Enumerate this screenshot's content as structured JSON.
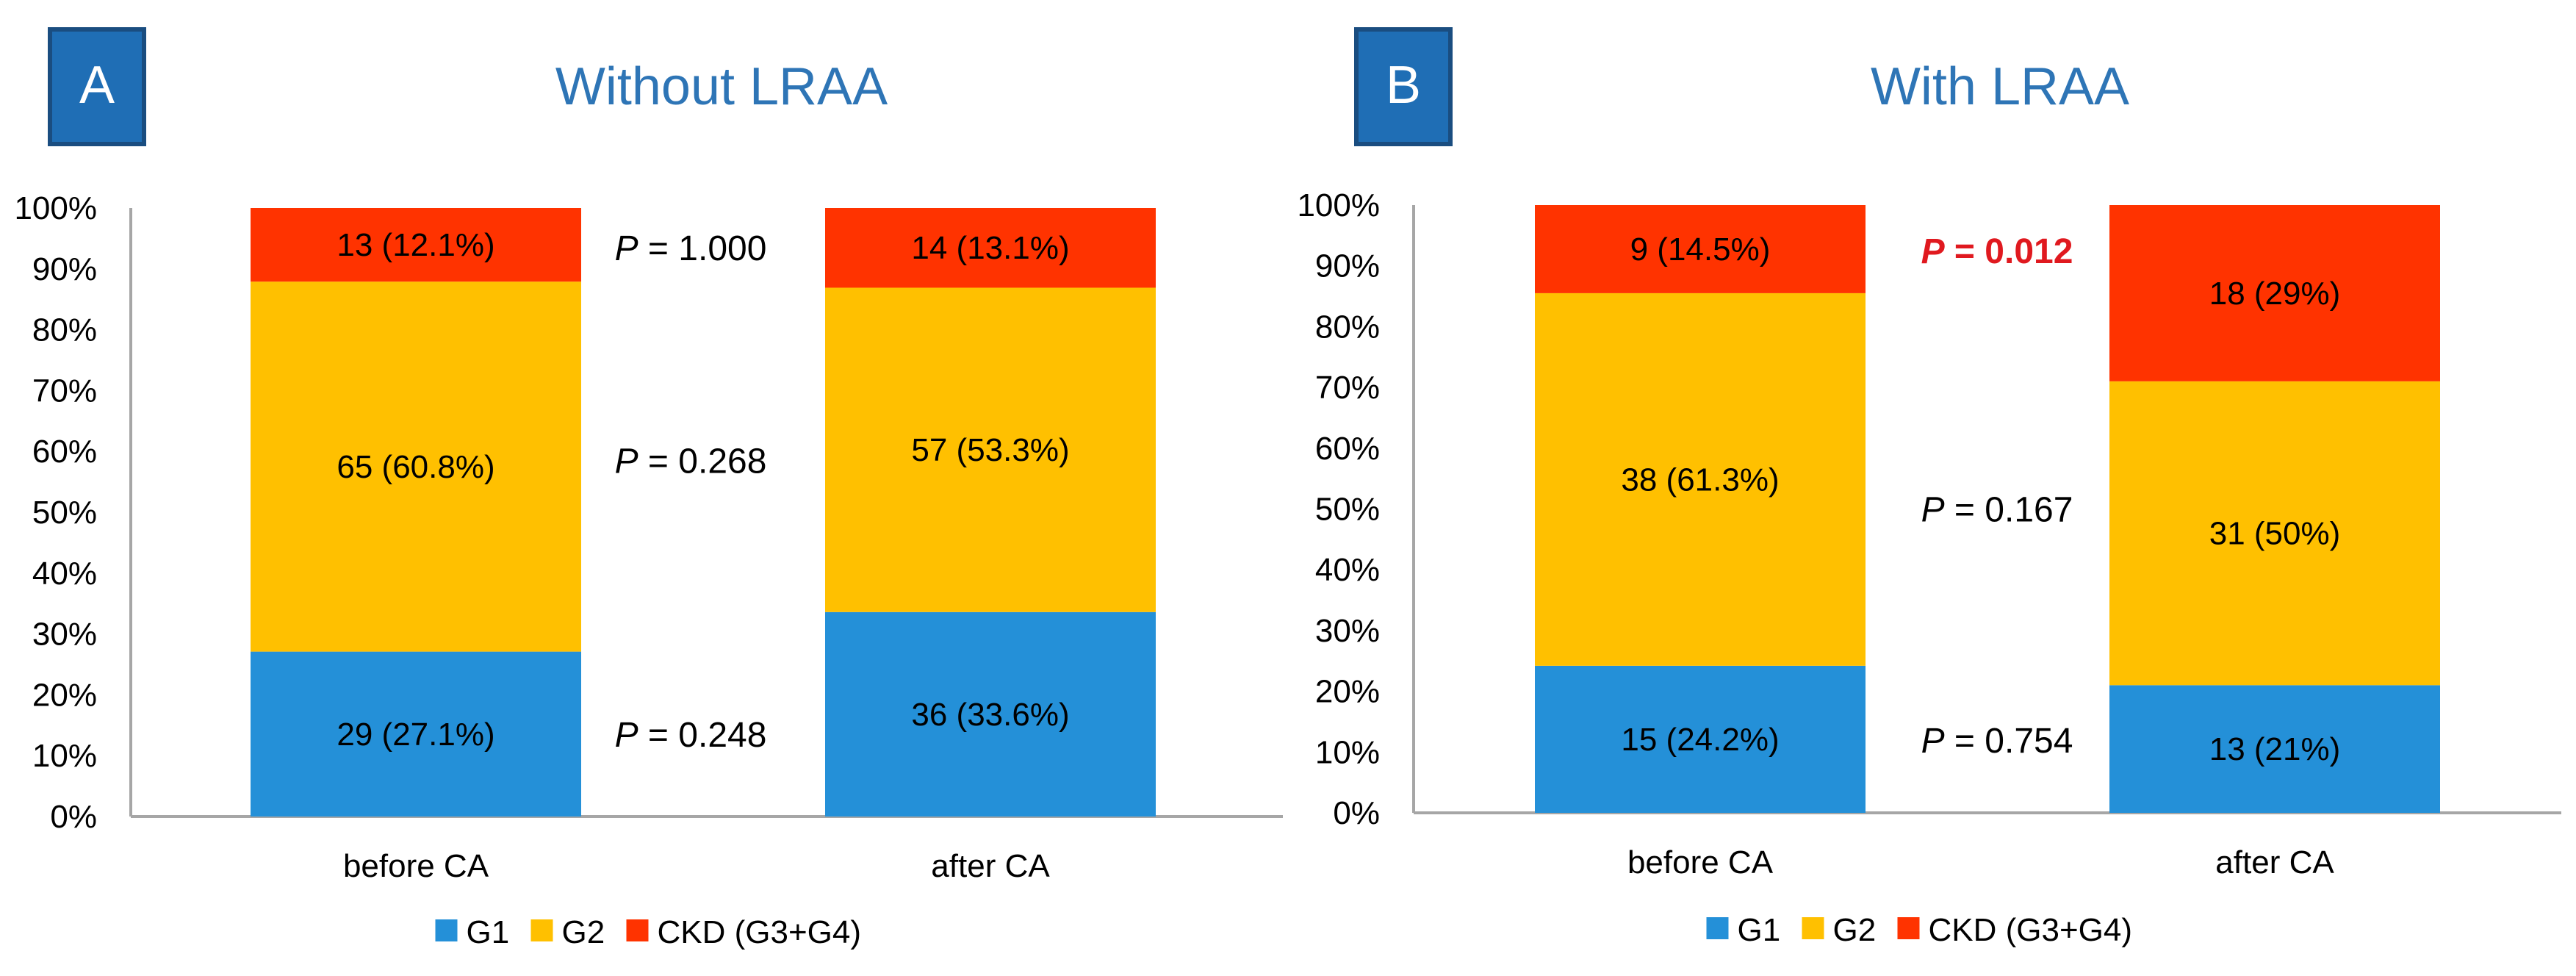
{
  "chart_data": [
    {
      "type": "bar",
      "stacked": true,
      "panel_label": "A",
      "title": "Without LRAA",
      "categories": [
        "before CA",
        "after CA"
      ],
      "ylim": [
        0,
        100
      ],
      "yticks": [
        "0%",
        "10%",
        "20%",
        "30%",
        "40%",
        "50%",
        "60%",
        "70%",
        "80%",
        "90%",
        "100%"
      ],
      "series": [
        {
          "name": "G1",
          "color": "#2490d8",
          "values": [
            27.1,
            33.6
          ],
          "labels": [
            "29 (27.1%)",
            "36 (33.6%)"
          ]
        },
        {
          "name": "G2",
          "color": "#ffc000",
          "values": [
            60.8,
            53.3
          ],
          "labels": [
            "65 (60.8%)",
            "57 (53.3%)"
          ]
        },
        {
          "name": "CKD (G3+G4)",
          "color": "#ff3300",
          "values": [
            12.1,
            13.1
          ],
          "labels": [
            "13 (12.1%)",
            "14 (13.1%)"
          ]
        }
      ],
      "p_values": [
        {
          "series": "G1",
          "prefix": "P",
          "text": " = 0.248",
          "y": 13.5,
          "significant": false
        },
        {
          "series": "G2",
          "prefix": "P",
          "text": " = 0.268",
          "y": 58.5,
          "significant": false
        },
        {
          "series": "CKD (G3+G4)",
          "prefix": "P",
          "text": " = 1.000",
          "y": 93.5,
          "significant": false
        }
      ],
      "legend": "bottom"
    },
    {
      "type": "bar",
      "stacked": true,
      "panel_label": "B",
      "title": "With LRAA",
      "categories": [
        "before CA",
        "after CA"
      ],
      "ylim": [
        0,
        100
      ],
      "yticks": [
        "0%",
        "10%",
        "20%",
        "30%",
        "40%",
        "50%",
        "60%",
        "70%",
        "80%",
        "90%",
        "100%"
      ],
      "series": [
        {
          "name": "G1",
          "color": "#2490d8",
          "values": [
            24.2,
            21.0
          ],
          "labels": [
            "15 (24.2%)",
            "13 (21%)"
          ]
        },
        {
          "name": "G2",
          "color": "#ffc000",
          "values": [
            61.3,
            50.0
          ],
          "labels": [
            "38 (61.3%)",
            "31 (50%)"
          ]
        },
        {
          "name": "CKD (G3+G4)",
          "color": "#ff3300",
          "values": [
            14.5,
            29.0
          ],
          "labels": [
            "9 (14.5%)",
            "18 (29%)"
          ]
        }
      ],
      "p_values": [
        {
          "series": "G1",
          "prefix": "P",
          "text": " = 0.754",
          "y": 12,
          "significant": false
        },
        {
          "series": "G2",
          "prefix": "P",
          "text": " = 0.167",
          "y": 50,
          "significant": false
        },
        {
          "series": "CKD (G3+G4)",
          "prefix": "P",
          "text": " = 0.012",
          "y": 92.5,
          "significant": true
        }
      ],
      "legend": "bottom"
    }
  ]
}
